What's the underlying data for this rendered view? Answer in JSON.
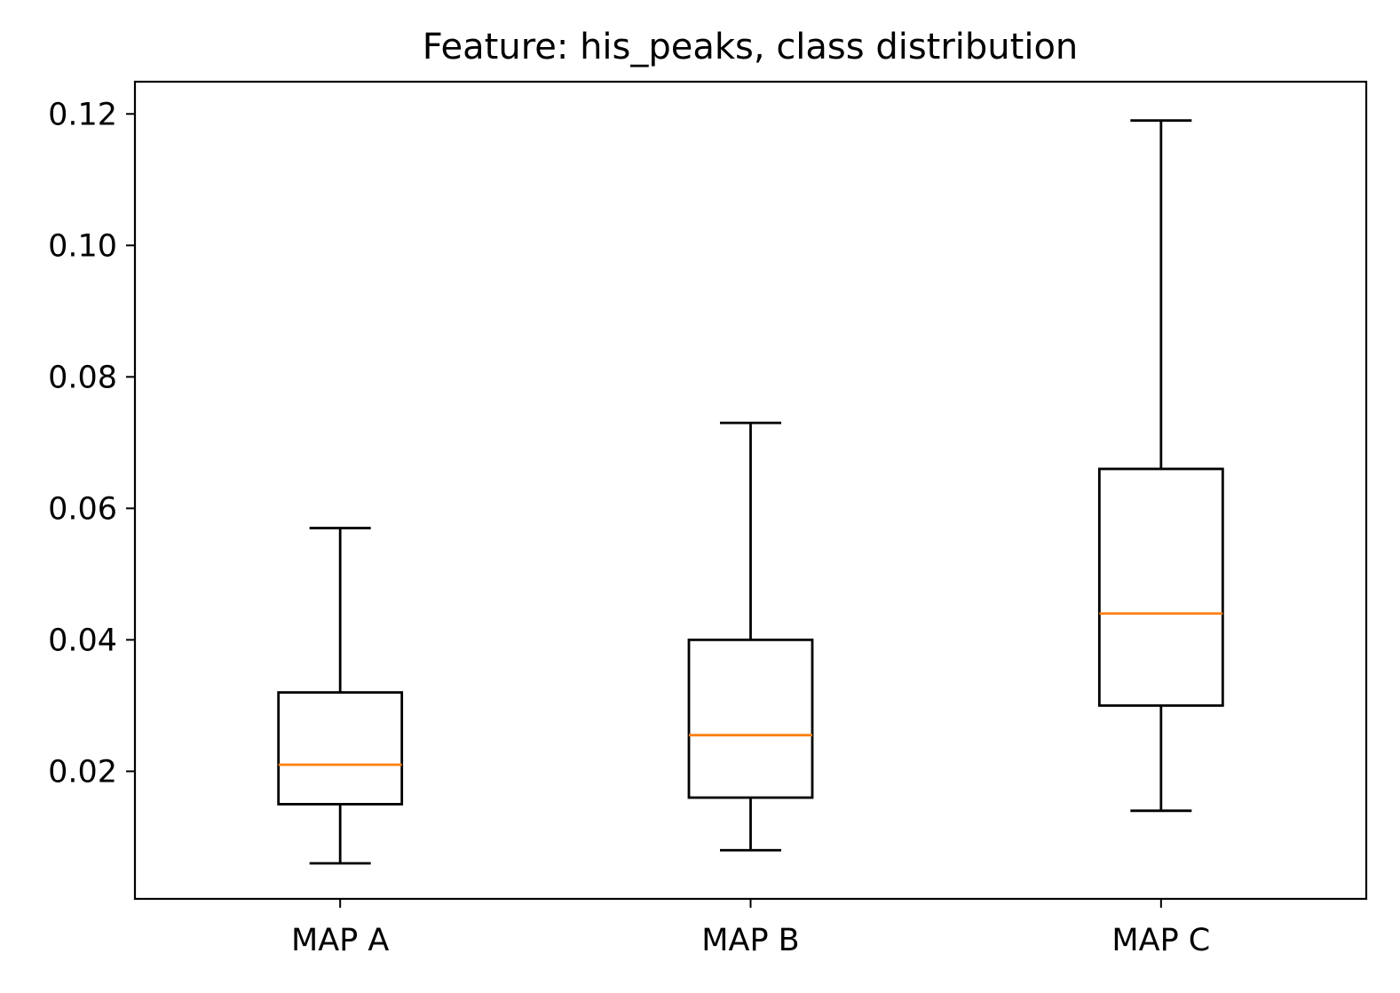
{
  "chart_data": {
    "type": "box",
    "title": "Feature: his_peaks, class distribution",
    "xlabel": "",
    "ylabel": "",
    "categories": [
      "MAP A",
      "MAP B",
      "MAP C"
    ],
    "boxes": [
      {
        "label": "MAP A",
        "whisker_low": 0.006,
        "q1": 0.015,
        "median": 0.021,
        "q3": 0.032,
        "whisker_high": 0.057
      },
      {
        "label": "MAP B",
        "whisker_low": 0.008,
        "q1": 0.016,
        "median": 0.0255,
        "q3": 0.04,
        "whisker_high": 0.073
      },
      {
        "label": "MAP C",
        "whisker_low": 0.014,
        "q1": 0.03,
        "median": 0.044,
        "q3": 0.066,
        "whisker_high": 0.119
      }
    ],
    "ylim": [
      0.0006,
      0.1249
    ],
    "yticks": [
      0.02,
      0.04,
      0.06,
      0.08,
      0.1,
      0.12
    ],
    "ytick_labels": [
      "0.02",
      "0.04",
      "0.06",
      "0.08",
      "0.10",
      "0.12"
    ],
    "grid": false,
    "legend": "none",
    "colors": {
      "box": "#000000",
      "median": "#ff7f0e",
      "axis": "#000000"
    }
  }
}
